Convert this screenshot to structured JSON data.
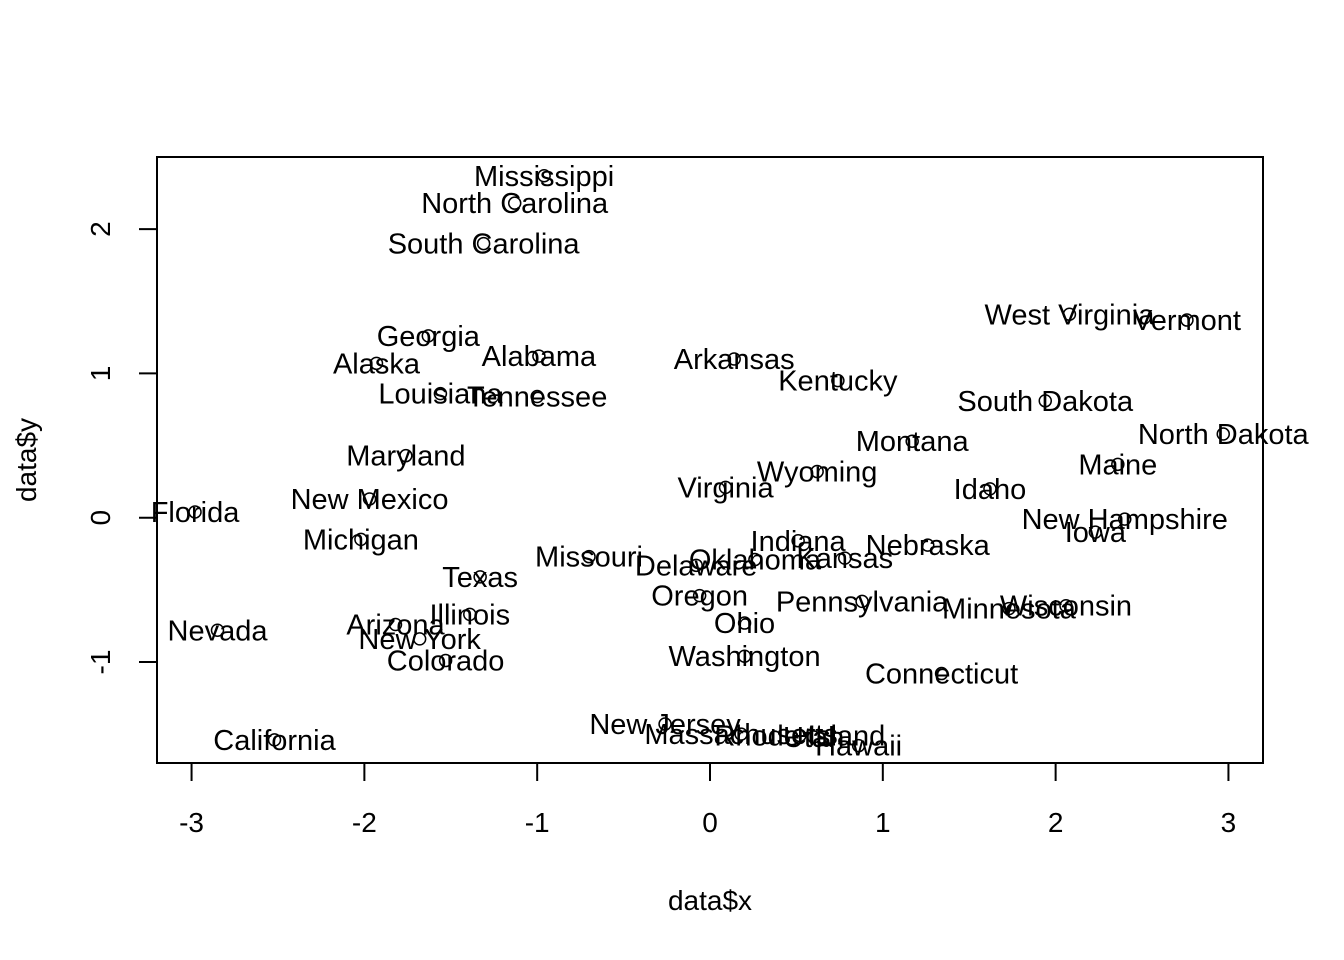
{
  "chart_data": {
    "type": "scatter",
    "title": "",
    "xlabel": "data$x",
    "ylabel": "data$y",
    "xlim": [
      -3.2,
      3.2
    ],
    "ylim": [
      -1.7,
      2.5
    ],
    "x_ticks": [
      -3,
      -2,
      -1,
      0,
      1,
      2,
      3
    ],
    "x_tick_labels": [
      "-3",
      "-2",
      "-1",
      "0",
      "1",
      "2",
      "3"
    ],
    "y_ticks": [
      -1,
      0,
      1,
      2
    ],
    "y_tick_labels": [
      "-1",
      "0",
      "1",
      "2"
    ],
    "grid": false,
    "marker": "open-circle",
    "points": [
      {
        "label": "Mississippi",
        "x": -0.96,
        "y": 2.37
      },
      {
        "label": "North Carolina",
        "x": -1.13,
        "y": 2.18
      },
      {
        "label": "South Carolina",
        "x": -1.31,
        "y": 1.9
      },
      {
        "label": "West Virginia",
        "x": 2.08,
        "y": 1.41
      },
      {
        "label": "Vermont",
        "x": 2.76,
        "y": 1.37
      },
      {
        "label": "Georgia",
        "x": -1.63,
        "y": 1.26
      },
      {
        "label": "Alabama",
        "x": -0.99,
        "y": 1.12
      },
      {
        "label": "Arkansas",
        "x": 0.14,
        "y": 1.1
      },
      {
        "label": "Alaska",
        "x": -1.93,
        "y": 1.07
      },
      {
        "label": "Kentucky",
        "x": 0.74,
        "y": 0.95
      },
      {
        "label": "Louisiana",
        "x": -1.56,
        "y": 0.86
      },
      {
        "label": "Tennessee",
        "x": -1.0,
        "y": 0.84
      },
      {
        "label": "South Dakota",
        "x": 1.94,
        "y": 0.81
      },
      {
        "label": "North Dakota",
        "x": 2.97,
        "y": 0.58
      },
      {
        "label": "Montana",
        "x": 1.17,
        "y": 0.53
      },
      {
        "label": "Maryland",
        "x": -1.76,
        "y": 0.43
      },
      {
        "label": "Maine",
        "x": 2.36,
        "y": 0.37
      },
      {
        "label": "Wyoming",
        "x": 0.62,
        "y": 0.32
      },
      {
        "label": "Virginia",
        "x": 0.09,
        "y": 0.21
      },
      {
        "label": "Idaho",
        "x": 1.62,
        "y": 0.2
      },
      {
        "label": "New Mexico",
        "x": -1.97,
        "y": 0.13
      },
      {
        "label": "Florida",
        "x": -2.98,
        "y": 0.04
      },
      {
        "label": "New Hampshire",
        "x": 2.4,
        "y": -0.01
      },
      {
        "label": "Iowa",
        "x": 2.23,
        "y": -0.1
      },
      {
        "label": "Michigan",
        "x": -2.02,
        "y": -0.15
      },
      {
        "label": "Indiana",
        "x": 0.51,
        "y": -0.16
      },
      {
        "label": "Nebraska",
        "x": 1.26,
        "y": -0.19
      },
      {
        "label": "Kansas",
        "x": 0.78,
        "y": -0.28
      },
      {
        "label": "Missouri",
        "x": -0.7,
        "y": -0.27
      },
      {
        "label": "Oklahoma",
        "x": 0.26,
        "y": -0.29
      },
      {
        "label": "Delaware",
        "x": -0.08,
        "y": -0.33
      },
      {
        "label": "Texas",
        "x": -1.33,
        "y": -0.41
      },
      {
        "label": "Oregon",
        "x": -0.06,
        "y": -0.54
      },
      {
        "label": "Pennsylvania",
        "x": 0.88,
        "y": -0.58
      },
      {
        "label": "Wisconsin",
        "x": 2.06,
        "y": -0.61
      },
      {
        "label": "Minnesota",
        "x": 1.73,
        "y": -0.63
      },
      {
        "label": "Illinois",
        "x": -1.39,
        "y": -0.67
      },
      {
        "label": "Ohio",
        "x": 0.2,
        "y": -0.73
      },
      {
        "label": "Arizona",
        "x": -1.82,
        "y": -0.74
      },
      {
        "label": "Nevada",
        "x": -2.85,
        "y": -0.78
      },
      {
        "label": "New York",
        "x": -1.68,
        "y": -0.84
      },
      {
        "label": "Washington",
        "x": 0.2,
        "y": -0.96
      },
      {
        "label": "Colorado",
        "x": -1.53,
        "y": -0.99
      },
      {
        "label": "Connecticut",
        "x": 1.34,
        "y": -1.08
      },
      {
        "label": "New Jersey",
        "x": -0.26,
        "y": -1.43
      },
      {
        "label": "Massachusetts",
        "x": 0.18,
        "y": -1.5
      },
      {
        "label": "Rhode Island",
        "x": 0.52,
        "y": -1.51
      },
      {
        "label": "Utah",
        "x": 0.6,
        "y": -1.52
      },
      {
        "label": "Hawaii",
        "x": 0.86,
        "y": -1.58
      },
      {
        "label": "California",
        "x": -2.52,
        "y": -1.54
      }
    ]
  }
}
